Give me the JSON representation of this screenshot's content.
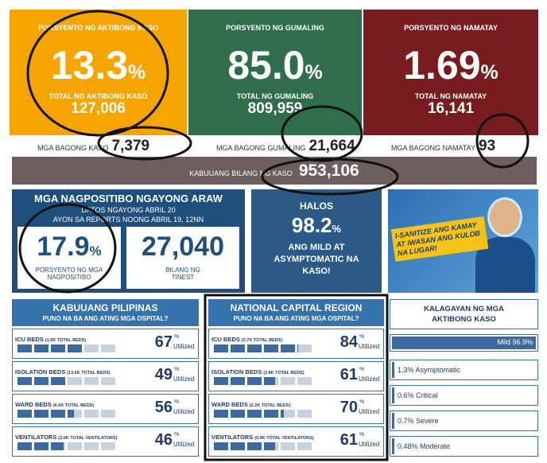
{
  "summary": [
    {
      "heading": "PORSYENTO NG AKTIBONG KASO",
      "percent": "13.3",
      "total_label": "TOTAL NG AKTIBONG KASO",
      "total": "127,006",
      "new_label": "MGA BAGONG KASO",
      "new": "7,379"
    },
    {
      "heading": "PORSYENTO NG GUMALING",
      "percent": "85.0",
      "total_label": "TOTAL NG GUMALING",
      "total": "809,959",
      "new_label": "MGA BAGONG GUMALING",
      "new": "21,664"
    },
    {
      "heading": "PORSYENTO NG NAMATAY",
      "percent": "1.69",
      "total_label": "TOTAL NG NAMATAY",
      "total": "16,141",
      "new_label": "MGA BAGONG NAMATAY",
      "new": "93"
    }
  ],
  "percent_sign": "%",
  "total_cases": {
    "label": "KABUUANG BILANG NG KASO",
    "value": "953,106"
  },
  "positivity": {
    "title": "MGA NAGPOSITIBO NGAYONG ARAW",
    "date": "DATOS NGAYONG ABRIL 20",
    "source": "AYON SA REPORTS NOONG ABRIL 19, 12NN",
    "rate": "17.9",
    "rate_label": "PORSYENTO NG MGA NAGPOSITIBO",
    "tested": "27,040",
    "tested_label": "BILANG NG TINEST"
  },
  "mild": {
    "prefix": "HALOS",
    "value": "98.2",
    "text": "ANG MILD AT ASYMPTOMATIC NA KASO!"
  },
  "poster": {
    "text": "I-SANITIZE ANG KAMAY AT IWASAN ANG KULOB NA LUGAR!"
  },
  "hospitals": [
    {
      "title": "KABUUANG PILIPINAS",
      "subtitle": "PUNO NA BA ANG ATING MGA OSPITAL?",
      "rows": [
        {
          "name": "ICU BEDS",
          "capacity": "(1.9K TOTAL BEDS)",
          "utilized": 67
        },
        {
          "name": "ISOLATION BEDS",
          "capacity": "(13.6K TOTAL BEDS)",
          "utilized": 49
        },
        {
          "name": "WARD BEDS",
          "capacity": "(6.0K TOTAL BEDS)",
          "utilized": 56
        },
        {
          "name": "VENTILATORS",
          "capacity": "(2.0K TOTAL VENTILATORS)",
          "utilized": 46
        }
      ]
    },
    {
      "title": "NATIONAL CAPITAL REGION",
      "subtitle": "PUNO NA BA ANG ATING MGA OSPITAL?",
      "rows": [
        {
          "name": "ICU BEDS",
          "capacity": "(0.7K TOTAL BEDS)",
          "utilized": 84
        },
        {
          "name": "ISOLATION BEDS",
          "capacity": "(3.8K TOTAL BEDS)",
          "utilized": 61
        },
        {
          "name": "WARD BEDS",
          "capacity": "(2.2K TOTAL BEDS)",
          "utilized": 70
        },
        {
          "name": "VENTILATORS",
          "capacity": "(0.9K TOTAL VENTILATORS)",
          "utilized": 61
        }
      ]
    }
  ],
  "utilized_label": "Utilized",
  "status": {
    "title": "KALAGAYAN NG MGA AKTIBONG KASO",
    "items": [
      "Mild 96.9%",
      "1.3% Asymptomatic",
      "0.6% Critical",
      "0.7% Severe",
      "0.48% Moderate"
    ]
  }
}
